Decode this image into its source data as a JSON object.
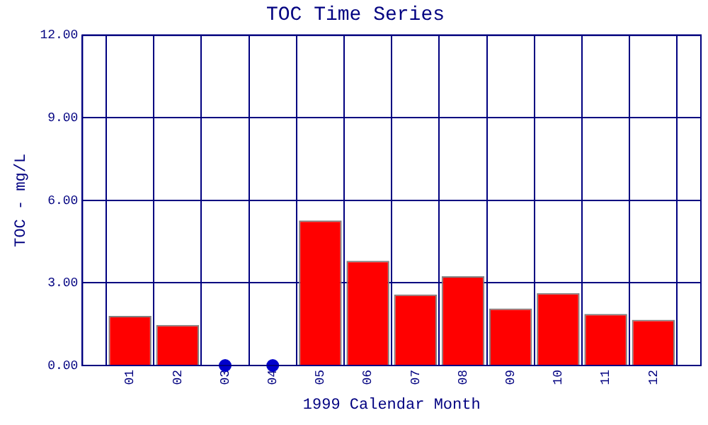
{
  "chart_data": {
    "type": "bar",
    "title": "TOC Time Series",
    "xlabel": "1999 Calendar Month",
    "ylabel": "TOC - mg/L",
    "categories": [
      "01",
      "02",
      "03",
      "04",
      "05",
      "06",
      "07",
      "08",
      "09",
      "10",
      "11",
      "12"
    ],
    "series": [
      {
        "type": "bar",
        "color": "#ff0000",
        "values": [
          1.8,
          1.47,
          null,
          null,
          5.27,
          3.8,
          2.58,
          3.24,
          2.07,
          2.63,
          1.87,
          1.66
        ]
      },
      {
        "type": "scatter",
        "color": "#0000cc",
        "x": [
          "03",
          "04"
        ],
        "values": [
          0,
          0
        ]
      }
    ],
    "ylim": [
      0,
      12
    ],
    "yticks": [
      {
        "value": 0,
        "label": "0.00"
      },
      {
        "value": 3,
        "label": "3.00"
      },
      {
        "value": 6,
        "label": "6.00"
      },
      {
        "value": 9,
        "label": "9.00"
      },
      {
        "value": 12,
        "label": "12.00"
      }
    ],
    "grid": true,
    "legend": false,
    "marker": "circle"
  }
}
